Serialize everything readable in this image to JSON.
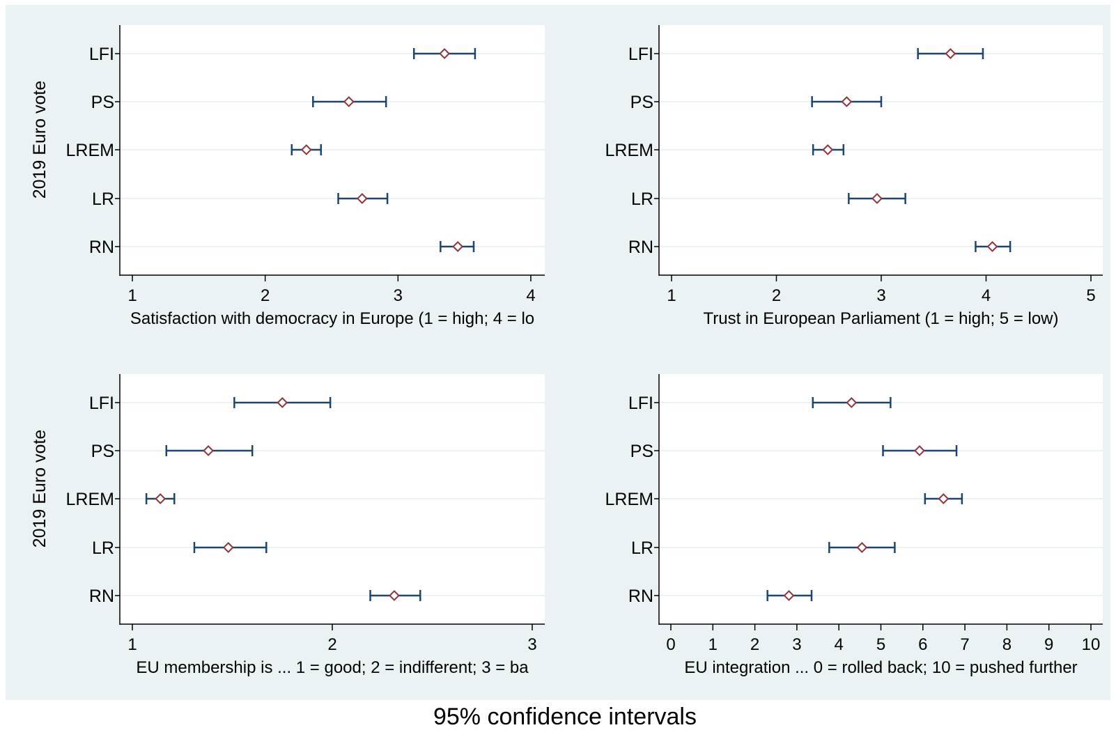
{
  "caption": "95% confidence intervals",
  "colors": {
    "outer_background": "#eaf2f3",
    "plot_background": "#ffffff",
    "gridline": "#eaf2f3",
    "ci_line": "#1a476f",
    "point_marker": "#90353b",
    "axis": "#000000"
  },
  "chart_data": [
    {
      "type": "scatter",
      "title": "",
      "xlabel": "Satisfaction with democracy in Europe (1 = high; 4 = lo",
      "ylabel": "2019 Euro vote",
      "xlim": [
        1,
        4
      ],
      "xticks": [
        "1",
        "2",
        "3",
        "4"
      ],
      "xtick_values": [
        1,
        2,
        3,
        4
      ],
      "categories": [
        "LFI",
        "PS",
        "LREM",
        "LR",
        "RN"
      ],
      "estimates": [
        3.35,
        2.63,
        2.31,
        2.73,
        3.45
      ],
      "ci_low": [
        3.12,
        2.36,
        2.2,
        2.55,
        3.32
      ],
      "ci_high": [
        3.58,
        2.91,
        2.42,
        2.92,
        3.57
      ],
      "grid": true
    },
    {
      "type": "scatter",
      "title": "",
      "xlabel": "Trust in European Parliament (1 = high; 5 = low)",
      "ylabel": "",
      "xlim": [
        1,
        5
      ],
      "xticks": [
        "1",
        "2",
        "3",
        "4",
        "5"
      ],
      "xtick_values": [
        1,
        2,
        3,
        4,
        5
      ],
      "categories": [
        "LFI",
        "PS",
        "LREM",
        "LR",
        "RN"
      ],
      "estimates": [
        3.66,
        2.67,
        2.49,
        2.96,
        4.06
      ],
      "ci_low": [
        3.35,
        2.34,
        2.35,
        2.69,
        3.9
      ],
      "ci_high": [
        3.97,
        3.0,
        2.64,
        3.23,
        4.23
      ],
      "grid": true
    },
    {
      "type": "scatter",
      "title": "",
      "xlabel": "EU membership is ... 1 = good; 2 = indifferent; 3 = ba",
      "ylabel": "2019 Euro vote",
      "xlim": [
        1,
        3
      ],
      "xticks": [
        "1",
        "2",
        "3"
      ],
      "xtick_values": [
        1,
        2,
        3
      ],
      "categories": [
        "LFI",
        "PS",
        "LREM",
        "LR",
        "RN"
      ],
      "estimates": [
        1.75,
        1.38,
        1.14,
        1.48,
        2.31
      ],
      "ci_low": [
        1.51,
        1.17,
        1.07,
        1.31,
        2.19
      ],
      "ci_high": [
        1.99,
        1.6,
        1.21,
        1.67,
        2.44
      ],
      "grid": true
    },
    {
      "type": "scatter",
      "title": "",
      "xlabel": "EU integration ... 0 = rolled back; 10 = pushed further",
      "ylabel": "",
      "xlim": [
        0,
        10
      ],
      "xticks": [
        "0",
        "1",
        "2",
        "3",
        "4",
        "5",
        "6",
        "7",
        "8",
        "9",
        "10"
      ],
      "xtick_values": [
        0,
        1,
        2,
        3,
        4,
        5,
        6,
        7,
        8,
        9,
        10
      ],
      "categories": [
        "LFI",
        "PS",
        "LREM",
        "LR",
        "RN"
      ],
      "estimates": [
        4.3,
        5.92,
        6.49,
        4.55,
        2.81
      ],
      "ci_low": [
        3.38,
        5.05,
        6.05,
        3.77,
        2.3
      ],
      "ci_high": [
        5.23,
        6.8,
        6.93,
        5.33,
        3.35
      ],
      "grid": true
    }
  ]
}
